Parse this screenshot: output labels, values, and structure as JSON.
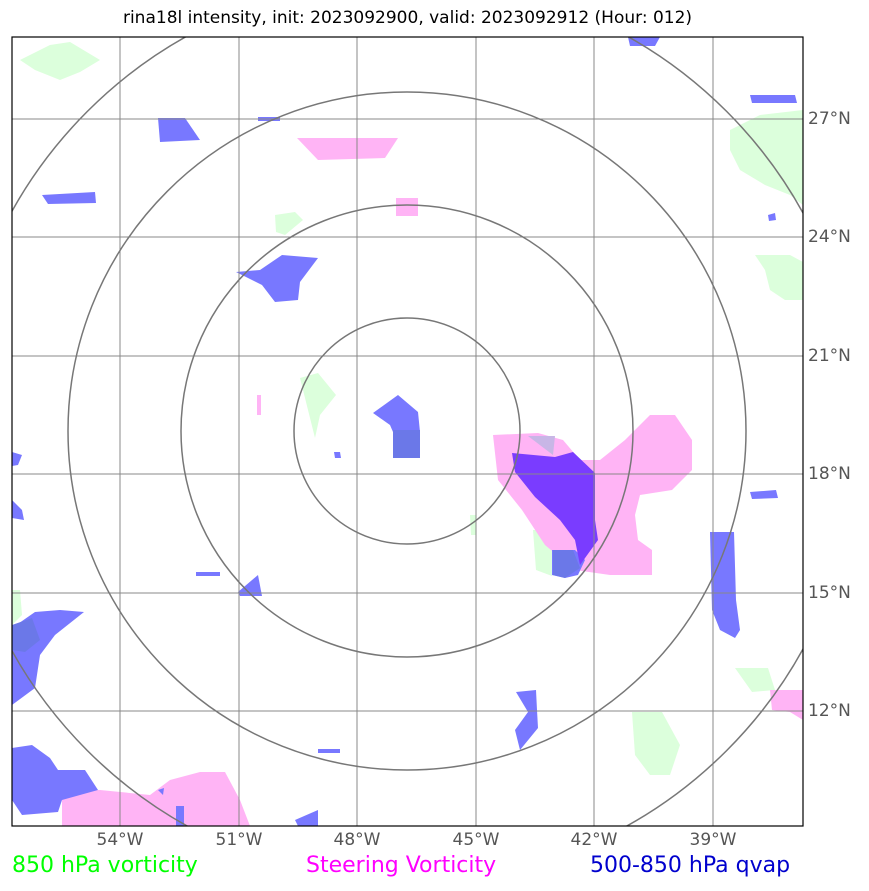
{
  "title": "rina18l intensity, init: 2023092900, valid: 2023092912 (Hour: 012)",
  "longitude_labels": [
    "54°W",
    "51°W",
    "48°W",
    "45°W",
    "42°W",
    "39°W"
  ],
  "latitude_labels": [
    "27°N",
    "24°N",
    "21°N",
    "18°N",
    "15°N",
    "12°N"
  ],
  "legend": {
    "green": "850 hPa vorticity",
    "magenta": "Steering Vorticity",
    "blue": "500-850 hPa qvap"
  },
  "colors": {
    "green_fill": "#dcffdc",
    "magenta_fill": "#ffb4f5",
    "blue_fill": "#7878ff",
    "overlap_fill": "#7a3cff",
    "grid": "#888888",
    "rings": "#777777"
  }
}
